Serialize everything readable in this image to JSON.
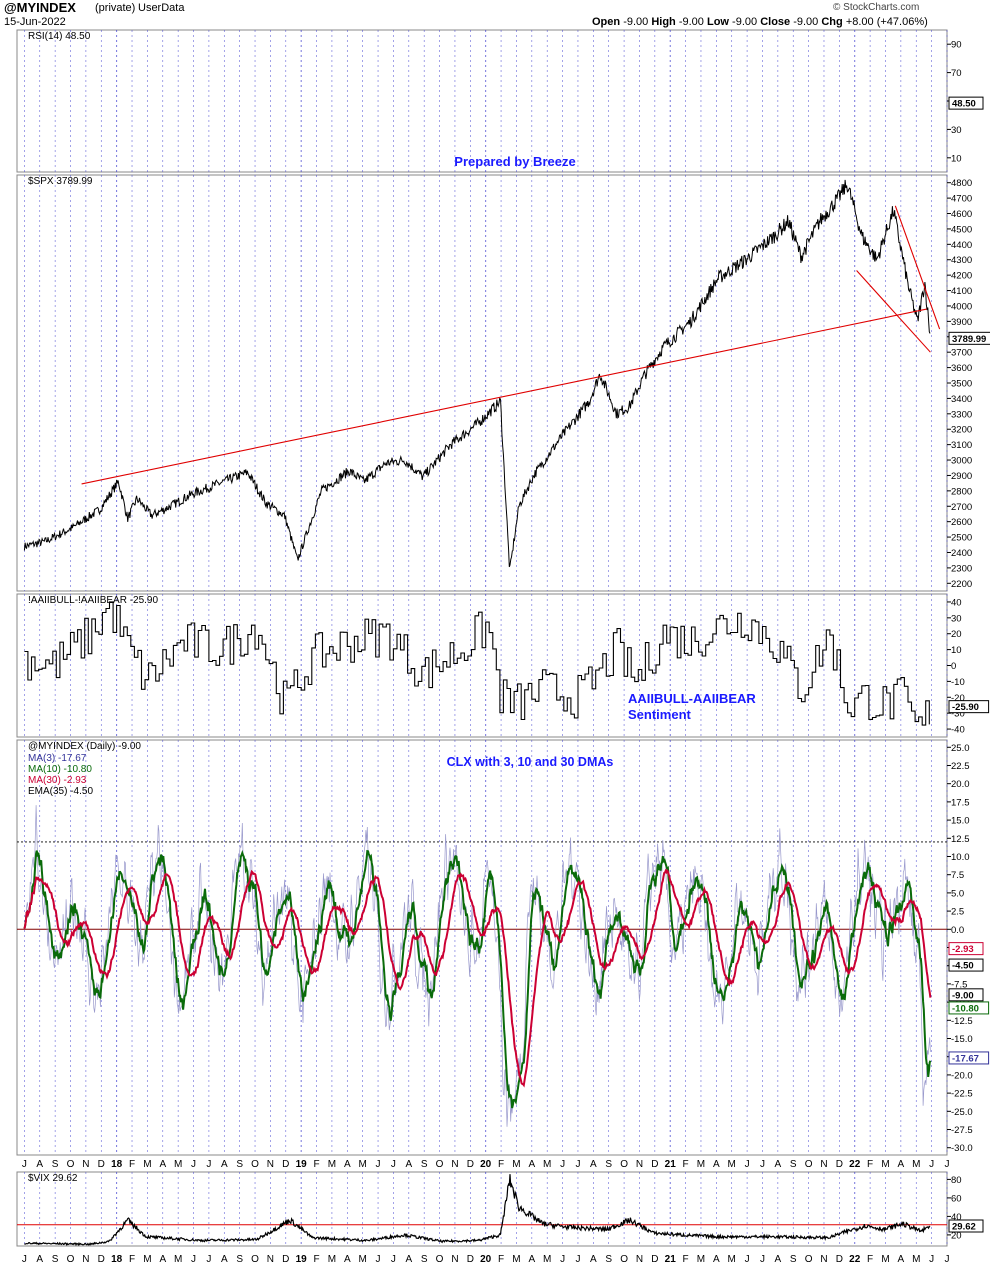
{
  "header": {
    "symbol": "@MYINDEX",
    "privacy": "(private)",
    "userdata": "UserData",
    "date": "15-Jun-2022",
    "open_label": "Open",
    "open": "-9.00",
    "high_label": "High",
    "high": "-9.00",
    "low_label": "Low",
    "low": "-9.00",
    "close_label": "Close",
    "close": "-9.00",
    "chg_label": "Chg",
    "chg": "+8.00 (+47.06%)",
    "watermark": "© StockCharts.com"
  },
  "colors": {
    "price": "#000000",
    "trendline": "#e00000",
    "annotation": "#1a1aff",
    "ma3": "#9999cc",
    "ma10": "#0a6b0a",
    "ma30": "#cc0033",
    "ema35": "#000000",
    "grid_vertical": "#3333cc"
  },
  "chart_data": [
    {
      "id": "rsi",
      "type": "line",
      "legend": "RSI(14) 48.50",
      "y_ticks": [
        90,
        70,
        50,
        30,
        10
      ],
      "last_label": "48.50",
      "ylim": [
        0,
        100
      ]
    },
    {
      "id": "spx",
      "type": "line",
      "legend": "$SPX 3789.99",
      "annotation": "Prepared by Breeze",
      "y_ticks": [
        2200,
        2300,
        2400,
        2500,
        2600,
        2700,
        2800,
        2900,
        3000,
        3100,
        3200,
        3300,
        3400,
        3500,
        3600,
        3700,
        3800,
        3900,
        4000,
        4100,
        4200,
        4300,
        4400,
        4500,
        4600,
        4700,
        4800
      ],
      "last_label": "3789.99",
      "ylim": [
        2150,
        4850
      ],
      "x": [
        2017.54,
        2017.65,
        2017.8,
        2017.95,
        2018.05,
        2018.1,
        2018.15,
        2018.23,
        2018.3,
        2018.45,
        2018.6,
        2018.75,
        2018.85,
        2018.95,
        2019.02,
        2019.15,
        2019.3,
        2019.38,
        2019.5,
        2019.6,
        2019.7,
        2019.85,
        2020.0,
        2020.12,
        2020.17,
        2020.22,
        2020.3,
        2020.45,
        2020.6,
        2020.66,
        2020.75,
        2020.82,
        2020.9,
        2021.0,
        2021.15,
        2021.3,
        2021.45,
        2021.6,
        2021.68,
        2021.75,
        2021.85,
        2021.95,
        2022.0,
        2022.08,
        2022.16,
        2022.25,
        2022.33,
        2022.38,
        2022.42,
        2022.45
      ],
      "y": [
        2440,
        2470,
        2560,
        2680,
        2860,
        2620,
        2750,
        2640,
        2680,
        2780,
        2850,
        2920,
        2720,
        2640,
        2350,
        2800,
        2930,
        2860,
        2980,
        3000,
        2890,
        3100,
        3240,
        3380,
        2280,
        2700,
        2900,
        3150,
        3380,
        3560,
        3300,
        3350,
        3550,
        3730,
        3900,
        4180,
        4300,
        4450,
        4550,
        4320,
        4550,
        4700,
        4790,
        4450,
        4300,
        4620,
        4130,
        3900,
        4150,
        3790
      ],
      "trendlines": [
        {
          "from": [
            2017.85,
            2845
          ],
          "to": [
            2022.43,
            3980
          ]
        },
        {
          "from": [
            2022.05,
            4230
          ],
          "to": [
            2022.45,
            3700
          ]
        },
        {
          "from": [
            2022.26,
            4650
          ],
          "to": [
            2022.5,
            3850
          ]
        }
      ]
    },
    {
      "id": "aaii",
      "type": "line",
      "legend": "!AAIIBULL-!AAIIBEAR -25.90",
      "annotation": [
        "AAIIBULL-AAIIBEAR",
        "Sentiment"
      ],
      "y_ticks": [
        40,
        30,
        20,
        10,
        0,
        -10,
        -20,
        -30,
        -40
      ],
      "last_label": "-25.90",
      "ylim": [
        -45,
        45
      ],
      "x": [
        2017.54,
        2017.7,
        2017.9,
        2018.0,
        2018.1,
        2018.2,
        2018.4,
        2018.6,
        2018.8,
        2018.95,
        2019.1,
        2019.3,
        2019.5,
        2019.7,
        2019.9,
        2020.05,
        2020.12,
        2020.2,
        2020.35,
        2020.55,
        2020.75,
        2020.85,
        2021.0,
        2021.15,
        2021.3,
        2021.45,
        2021.6,
        2021.75,
        2021.9,
        2022.0,
        2022.1,
        2022.2,
        2022.3,
        2022.38,
        2022.45
      ],
      "y": [
        5,
        0,
        20,
        38,
        10,
        -10,
        15,
        10,
        25,
        -25,
        5,
        15,
        20,
        -5,
        10,
        25,
        -20,
        -25,
        -15,
        -20,
        10,
        -10,
        20,
        15,
        25,
        30,
        15,
        -15,
        20,
        -25,
        -20,
        -25,
        -20,
        -43,
        -25.9
      ]
    },
    {
      "id": "clx",
      "type": "line",
      "legend": "@MYINDEX (Daily) -9.00",
      "annotation": "CLX with 3, 10 and 30 DMAs",
      "series": [
        {
          "name": "MA(3) -17.67",
          "color": "#9999cc"
        },
        {
          "name": "MA(10) -10.80",
          "color": "#0a6b0a"
        },
        {
          "name": "MA(30) -2.93",
          "color": "#cc0033"
        },
        {
          "name": "EMA(35) -4.50",
          "color": "#000000"
        }
      ],
      "y_ticks": [
        25.0,
        22.5,
        20.0,
        17.5,
        15.0,
        12.5,
        10.0,
        7.5,
        5.0,
        2.5,
        0.0,
        -2.5,
        -5.0,
        -7.5,
        -10.0,
        -12.5,
        -15.0,
        -17.5,
        -20.0,
        -22.5,
        -25.0,
        -27.5,
        -30.0
      ],
      "last_labels": [
        "-2.93",
        "-4.50",
        "-9.00",
        "-10.80",
        "-17.67"
      ],
      "ylim": [
        -31,
        26
      ],
      "reference_lines": [
        12,
        0
      ]
    },
    {
      "id": "vix",
      "type": "line",
      "legend": "$VIX 29.62",
      "y_ticks": [
        80,
        60,
        40,
        20
      ],
      "last_label": "29.62",
      "ylim": [
        8,
        88
      ],
      "reference_line": 31,
      "x": [
        2017.54,
        2017.9,
        2018.0,
        2018.1,
        2018.2,
        2018.5,
        2018.8,
        2018.98,
        2019.1,
        2019.4,
        2019.6,
        2019.8,
        2020.0,
        2020.12,
        2020.17,
        2020.22,
        2020.35,
        2020.5,
        2020.7,
        2020.82,
        2020.95,
        2021.1,
        2021.3,
        2021.6,
        2021.9,
        2022.0,
        2022.1,
        2022.2,
        2022.3,
        2022.4,
        2022.45
      ],
      "y": [
        11,
        10,
        13,
        36,
        18,
        14,
        15,
        36,
        17,
        14,
        20,
        13,
        14,
        20,
        80,
        50,
        32,
        28,
        26,
        36,
        22,
        20,
        18,
        18,
        17,
        24,
        30,
        26,
        32,
        24,
        29.62
      ]
    }
  ],
  "x_axis": {
    "labels": [
      "J",
      "A",
      "S",
      "O",
      "N",
      "D",
      "18",
      "F",
      "M",
      "A",
      "M",
      "J",
      "J",
      "A",
      "S",
      "O",
      "N",
      "D",
      "19",
      "F",
      "M",
      "A",
      "M",
      "J",
      "J",
      "A",
      "S",
      "O",
      "N",
      "D",
      "20",
      "F",
      "M",
      "A",
      "M",
      "J",
      "J",
      "A",
      "S",
      "O",
      "N",
      "D",
      "21",
      "F",
      "M",
      "A",
      "M",
      "J",
      "J",
      "A",
      "S",
      "O",
      "N",
      "D",
      "22",
      "F",
      "M",
      "A",
      "M",
      "J",
      "J"
    ],
    "start_month": 2017.5
  }
}
